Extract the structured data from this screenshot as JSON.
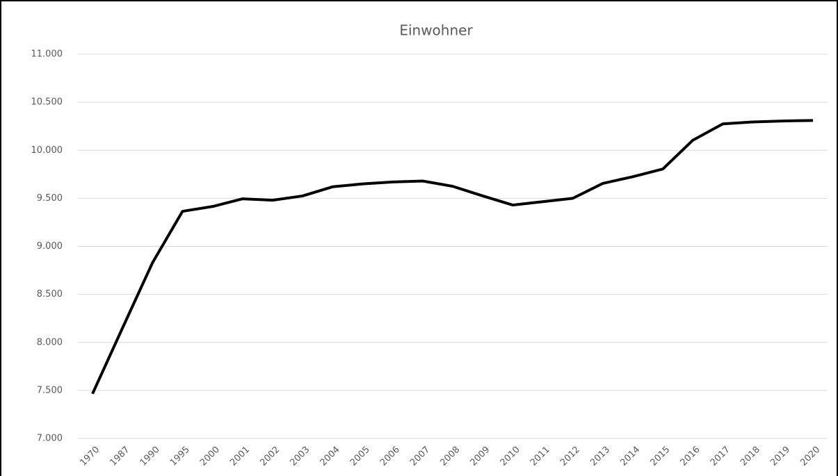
{
  "chart_data": {
    "type": "line",
    "title": "Einwohner",
    "categories": [
      "1970",
      "1987",
      "1990",
      "1995",
      "2000",
      "2001",
      "2002",
      "2003",
      "2004",
      "2005",
      "2006",
      "2007",
      "2008",
      "2009",
      "2010",
      "2011",
      "2012",
      "2013",
      "2014",
      "2015",
      "2016",
      "2017",
      "2018",
      "2019",
      "2020"
    ],
    "series": [
      {
        "name": "Einwohner",
        "color": "#000000",
        "values": [
          7465,
          8150,
          8830,
          9365,
          9415,
          9495,
          9480,
          9525,
          9620,
          9650,
          9670,
          9680,
          9625,
          9525,
          9430,
          9465,
          9500,
          9655,
          9725,
          9805,
          10105,
          10275,
          10295,
          10305,
          10310
        ]
      }
    ],
    "ylim": [
      7000,
      11000
    ],
    "yticks": [
      {
        "value": 7000,
        "label": "7.000"
      },
      {
        "value": 7500,
        "label": "7.500"
      },
      {
        "value": 8000,
        "label": "8.000"
      },
      {
        "value": 8500,
        "label": "8.500"
      },
      {
        "value": 9000,
        "label": "9.000"
      },
      {
        "value": 9500,
        "label": "9.500"
      },
      {
        "value": 10000,
        "label": "10.000"
      },
      {
        "value": 10500,
        "label": "10.500"
      },
      {
        "value": 11000,
        "label": "11.000"
      }
    ],
    "grid": true
  }
}
